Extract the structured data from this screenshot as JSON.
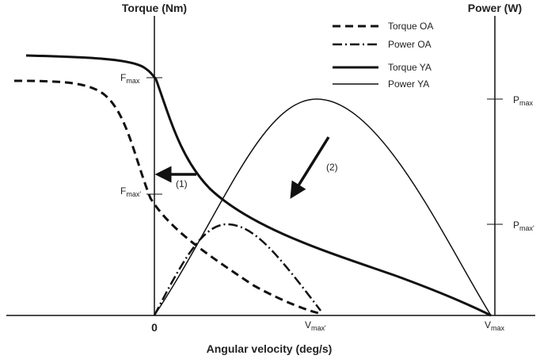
{
  "axes": {
    "left_title": "Torque (Nm)",
    "right_title": "Power (W)",
    "x_title": "Angular velocity (deg/s)",
    "origin": "0"
  },
  "legend": [
    "Torque OA",
    "Power OA",
    "Torque YA",
    "Power YA"
  ],
  "labels": {
    "fmax": {
      "base": "F",
      "sub": "max"
    },
    "fmax_prime": {
      "base": "F",
      "sub": "max'"
    },
    "pmax": {
      "base": "P",
      "sub": "max"
    },
    "pmax_prime": {
      "base": "P",
      "sub": "max'"
    },
    "vmax_prime": {
      "base": "V",
      "sub": "max'"
    },
    "vmax": {
      "base": "V",
      "sub": "max"
    }
  },
  "annotations": [
    "(1)",
    "(2)"
  ]
}
